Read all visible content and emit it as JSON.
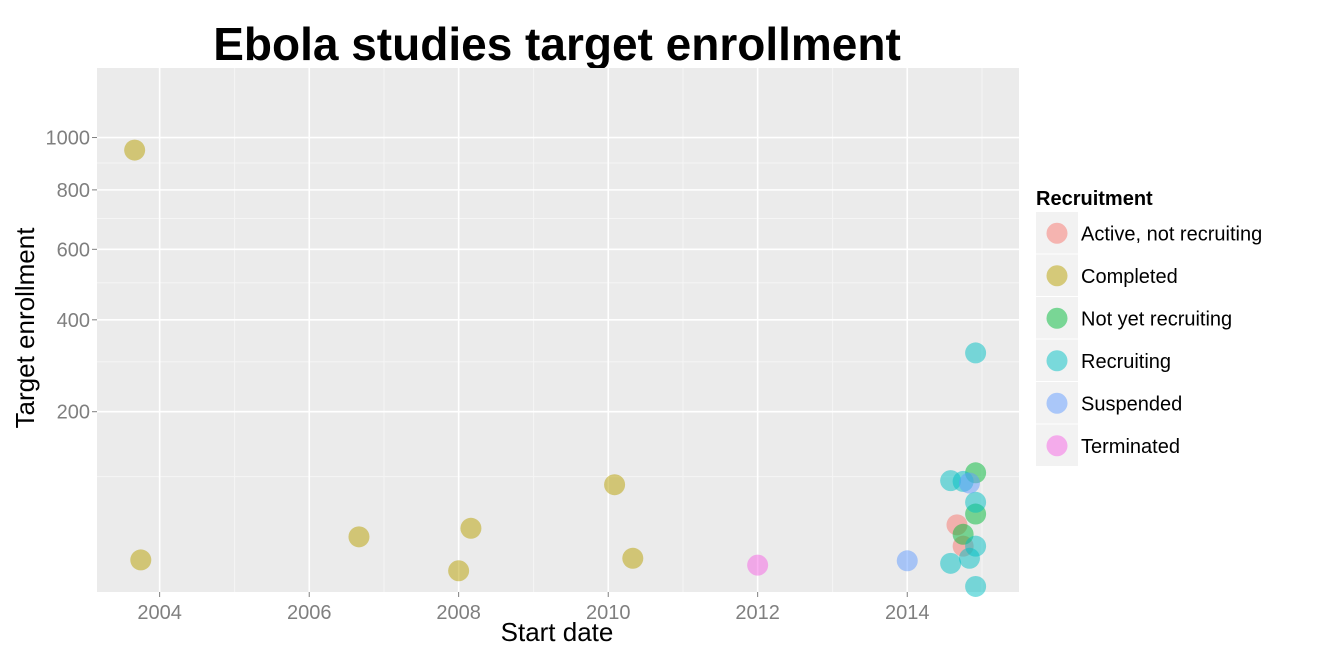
{
  "chart_data": {
    "type": "scatter",
    "title": "Ebola studies target enrollment",
    "xlabel": "Start date",
    "ylabel": "Target enrollment",
    "x_axis": {
      "scale": "date",
      "range": [
        "2003-03-01",
        "2015-07-01"
      ],
      "ticks": [
        "2004",
        "2006",
        "2008",
        "2010",
        "2012",
        "2014"
      ]
    },
    "y_axis": {
      "scale": "log",
      "range": [
        7,
        1300
      ],
      "ticks": [
        "200",
        "400",
        "600",
        "800",
        "1000"
      ]
    },
    "grid": true,
    "background": "#ebebeb",
    "legend": {
      "title": "Recruitment",
      "position": "right"
    },
    "series": [
      {
        "name": "Active, not recruiting",
        "color": "#f8766d",
        "points": [
          {
            "x": "2014-09-01",
            "y": 48
          },
          {
            "x": "2014-10-01",
            "y": 31
          }
        ]
      },
      {
        "name": "Completed",
        "color": "#b79f00",
        "points": [
          {
            "x": "2003-09-01",
            "y": 950
          },
          {
            "x": "2003-10-01",
            "y": 22
          },
          {
            "x": "2006-09-01",
            "y": 38
          },
          {
            "x": "2008-01-01",
            "y": 16
          },
          {
            "x": "2008-03-01",
            "y": 45
          },
          {
            "x": "2010-02-01",
            "y": 90
          },
          {
            "x": "2010-05-01",
            "y": 23
          }
        ]
      },
      {
        "name": "Not yet recruiting",
        "color": "#00ba38",
        "points": [
          {
            "x": "2014-12-01",
            "y": 105
          },
          {
            "x": "2014-12-01",
            "y": 58
          },
          {
            "x": "2014-10-01",
            "y": 40
          }
        ]
      },
      {
        "name": "Recruiting",
        "color": "#00bfc4",
        "points": [
          {
            "x": "2014-12-01",
            "y": 320
          },
          {
            "x": "2014-08-01",
            "y": 95
          },
          {
            "x": "2014-10-01",
            "y": 94
          },
          {
            "x": "2014-12-01",
            "y": 70
          },
          {
            "x": "2014-12-01",
            "y": 31
          },
          {
            "x": "2014-11-01",
            "y": 23
          },
          {
            "x": "2014-08-01",
            "y": 20
          },
          {
            "x": "2014-12-01",
            "y": 9
          }
        ]
      },
      {
        "name": "Suspended",
        "color": "#619cff",
        "points": [
          {
            "x": "2014-11-01",
            "y": 92
          },
          {
            "x": "2014-01-01",
            "y": 21.5
          }
        ]
      },
      {
        "name": "Terminated",
        "color": "#f564e3",
        "points": [
          {
            "x": "2012-01-01",
            "y": 19
          }
        ]
      }
    ]
  }
}
